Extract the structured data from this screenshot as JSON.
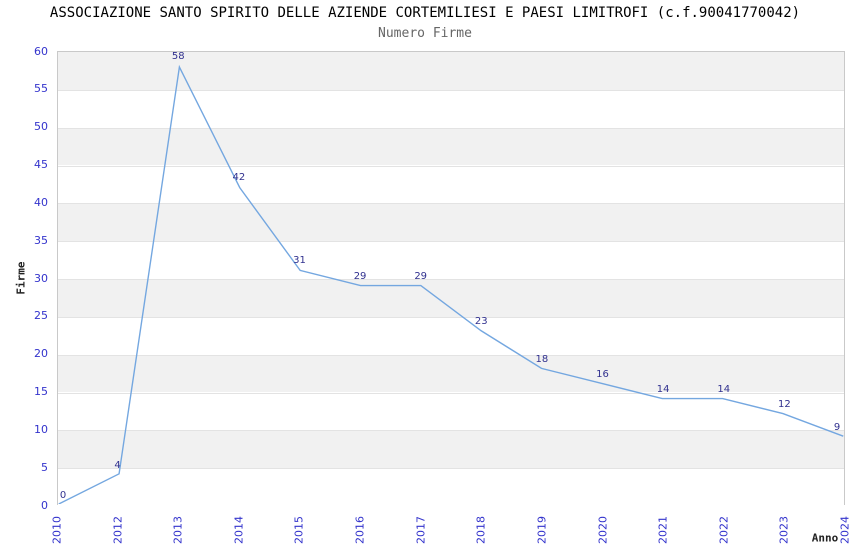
{
  "chart_data": {
    "type": "line",
    "title": "ASSOCIAZIONE SANTO SPIRITO DELLE AZIENDE CORTEMILIESI E PAESI LIMITROFI (c.f.90041770042)",
    "subtitle": "Numero Firme",
    "xlabel": "Anno",
    "ylabel": "Firme",
    "categories": [
      "2010",
      "2012",
      "2013",
      "2014",
      "2015",
      "2016",
      "2017",
      "2018",
      "2019",
      "2020",
      "2021",
      "2022",
      "2023",
      "2024"
    ],
    "values": [
      0,
      4,
      58,
      42,
      31,
      29,
      29,
      23,
      18,
      16,
      14,
      14,
      12,
      9
    ],
    "ylim": [
      0,
      60
    ],
    "ytick_step": 5,
    "grid": "alternating-horizontal-bands",
    "legend_position": "none",
    "data_labels_visible": true,
    "colors": {
      "line": "#74a7e0",
      "tick_label": "#3333cc",
      "data_label": "#31318f",
      "band_gray": "#f1f1f1",
      "band_white": "#ffffff",
      "gridline": "#e3e3e3",
      "plot_border": "#c9c9c9",
      "title": "#000000",
      "subtitle": "#666666",
      "axis_title": "#222222"
    }
  }
}
